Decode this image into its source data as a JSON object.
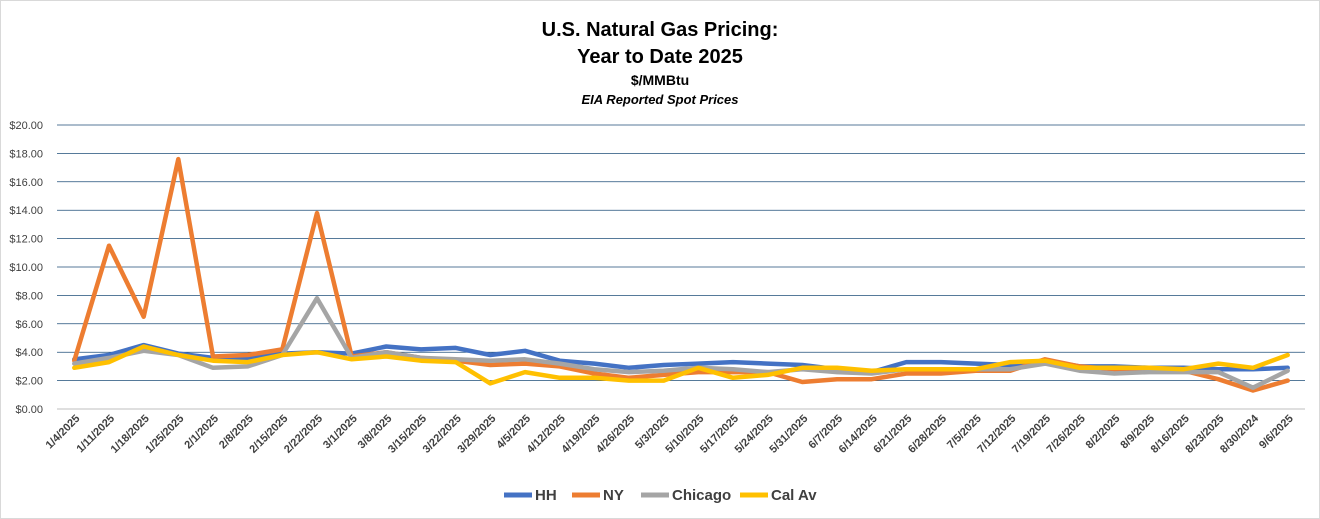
{
  "chart_data": {
    "type": "line",
    "title": "U.S. Natural Gas Pricing:",
    "title_line2": "Year to Date 2025",
    "subtitle": "$/MMBtu",
    "subtitle2": "EIA Reported Spot Prices",
    "xlabel": "",
    "ylabel": "",
    "ylim": [
      0,
      20
    ],
    "yticks": [
      "$0.00",
      "$2.00",
      "$4.00",
      "$6.00",
      "$8.00",
      "$10.00",
      "$12.00",
      "$14.00",
      "$16.00",
      "$18.00",
      "$20.00"
    ],
    "ytick_values": [
      0,
      2,
      4,
      6,
      8,
      10,
      12,
      14,
      16,
      18,
      20
    ],
    "grid": true,
    "legend_position": "bottom",
    "categories": [
      "1/4/2025",
      "1/11/2025",
      "1/18/2025",
      "1/25/2025",
      "2/1/2025",
      "2/8/2025",
      "2/15/2025",
      "2/22/2025",
      "3/1/2025",
      "3/8/2025",
      "3/15/2025",
      "3/22/2025",
      "3/29/2025",
      "4/5/2025",
      "4/12/2025",
      "4/19/2025",
      "4/26/2025",
      "5/3/2025",
      "5/10/2025",
      "5/17/2025",
      "5/24/2025",
      "5/31/2025",
      "6/7/2025",
      "6/14/2025",
      "6/21/2025",
      "6/28/2025",
      "7/5/2025",
      "7/12/2025",
      "7/19/2025",
      "7/26/2025",
      "8/2/2025",
      "8/9/2025",
      "8/16/2025",
      "8/23/2025",
      "8/30/2024",
      "9/6/2025"
    ],
    "series": [
      {
        "name": "HH",
        "color": "#4472c4",
        "values": [
          3.5,
          3.8,
          4.5,
          3.9,
          3.6,
          3.6,
          3.9,
          4.0,
          3.9,
          4.4,
          4.2,
          4.3,
          3.8,
          4.1,
          3.4,
          3.2,
          2.9,
          3.1,
          3.2,
          3.3,
          3.2,
          3.1,
          2.8,
          2.6,
          3.3,
          3.3,
          3.2,
          3.1,
          3.4,
          3.0,
          3.0,
          2.9,
          2.9,
          2.8,
          2.8,
          2.9
        ]
      },
      {
        "name": "NY",
        "color": "#ed7d31",
        "values": [
          3.4,
          11.5,
          6.5,
          17.6,
          3.7,
          3.8,
          4.2,
          13.8,
          3.7,
          4.0,
          3.6,
          3.4,
          3.1,
          3.2,
          3.0,
          2.5,
          2.2,
          2.4,
          2.6,
          2.6,
          2.6,
          1.9,
          2.1,
          2.1,
          2.5,
          2.5,
          2.7,
          2.7,
          3.5,
          3.0,
          2.8,
          2.8,
          2.7,
          2.1,
          1.3,
          2.0
        ]
      },
      {
        "name": "Chicago",
        "color": "#a5a5a5",
        "values": [
          3.2,
          3.6,
          4.1,
          3.8,
          2.9,
          3.0,
          3.8,
          7.8,
          3.6,
          4.0,
          3.6,
          3.5,
          3.4,
          3.5,
          3.2,
          2.8,
          2.6,
          2.7,
          2.9,
          2.8,
          2.6,
          2.8,
          2.6,
          2.5,
          2.8,
          2.8,
          2.8,
          2.8,
          3.2,
          2.7,
          2.5,
          2.6,
          2.6,
          2.6,
          1.5,
          2.7
        ]
      },
      {
        "name": "Cal Av",
        "color": "#ffc000",
        "values": [
          2.9,
          3.3,
          4.4,
          3.8,
          3.4,
          3.3,
          3.8,
          4.0,
          3.5,
          3.7,
          3.4,
          3.3,
          1.8,
          2.6,
          2.2,
          2.2,
          2.0,
          2.0,
          2.9,
          2.2,
          2.4,
          2.9,
          2.9,
          2.7,
          2.8,
          2.8,
          2.8,
          3.3,
          3.4,
          2.9,
          2.9,
          2.9,
          2.8,
          3.2,
          2.9,
          3.8
        ]
      }
    ]
  }
}
